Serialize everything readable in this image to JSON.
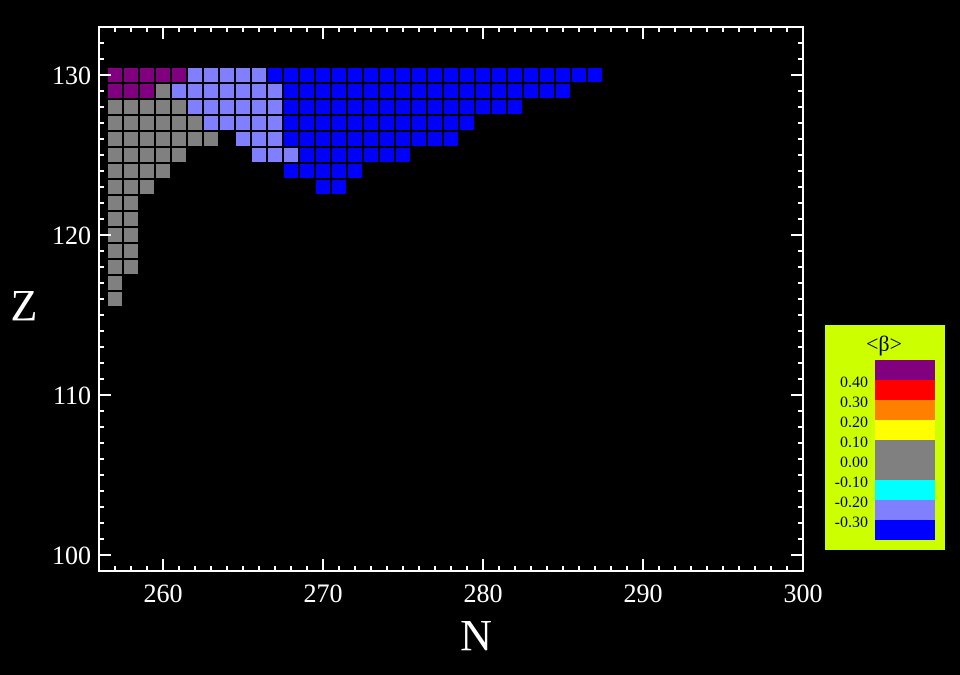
{
  "chart_data": {
    "type": "heatmap",
    "xlabel": "N",
    "ylabel": "Z",
    "xlim": [
      256,
      300
    ],
    "ylim": [
      99,
      133
    ],
    "x_ticks": [
      260,
      270,
      280,
      290,
      300
    ],
    "y_ticks": [
      100,
      110,
      120,
      130
    ],
    "grid": false,
    "legend": {
      "title": "<β>",
      "placement": "right",
      "bins": [
        {
          "color": "#800080",
          "label": ""
        },
        {
          "color": "#ff0000",
          "label": "0.40"
        },
        {
          "color": "#ff8000",
          "label": "0.30"
        },
        {
          "color": "#ffff00",
          "label": "0.20"
        },
        {
          "color": "#808080",
          "label": "0.10"
        },
        {
          "color": "#808080",
          "label": "0.00"
        },
        {
          "color": "#00ffff",
          "label": "-0.10"
        },
        {
          "color": "#8080ff",
          "label": "-0.20"
        },
        {
          "color": "#0000ff",
          "label": "-0.30"
        }
      ],
      "background": "#ccff00"
    },
    "runs": [
      {
        "z": 130,
        "n_from": 257,
        "n_to": 261,
        "color": "#800080"
      },
      {
        "z": 130,
        "n_from": 262,
        "n_to": 266,
        "color": "#8080ff"
      },
      {
        "z": 130,
        "n_from": 267,
        "n_to": 287,
        "color": "#0000ff"
      },
      {
        "z": 129,
        "n_from": 257,
        "n_to": 259,
        "color": "#800080"
      },
      {
        "z": 129,
        "n_from": 260,
        "n_to": 260,
        "color": "#808080"
      },
      {
        "z": 129,
        "n_from": 261,
        "n_to": 267,
        "color": "#8080ff"
      },
      {
        "z": 129,
        "n_from": 268,
        "n_to": 285,
        "color": "#0000ff"
      },
      {
        "z": 128,
        "n_from": 257,
        "n_to": 261,
        "color": "#808080"
      },
      {
        "z": 128,
        "n_from": 262,
        "n_to": 267,
        "color": "#8080ff"
      },
      {
        "z": 128,
        "n_from": 268,
        "n_to": 282,
        "color": "#0000ff"
      },
      {
        "z": 127,
        "n_from": 257,
        "n_to": 262,
        "color": "#808080"
      },
      {
        "z": 127,
        "n_from": 263,
        "n_to": 267,
        "color": "#8080ff"
      },
      {
        "z": 127,
        "n_from": 268,
        "n_to": 279,
        "color": "#0000ff"
      },
      {
        "z": 126,
        "n_from": 257,
        "n_to": 263,
        "color": "#808080"
      },
      {
        "z": 126,
        "n_from": 265,
        "n_to": 267,
        "color": "#8080ff"
      },
      {
        "z": 126,
        "n_from": 268,
        "n_to": 278,
        "color": "#0000ff"
      },
      {
        "z": 125,
        "n_from": 257,
        "n_to": 261,
        "color": "#808080"
      },
      {
        "z": 125,
        "n_from": 266,
        "n_to": 268,
        "color": "#8080ff"
      },
      {
        "z": 125,
        "n_from": 269,
        "n_to": 275,
        "color": "#0000ff"
      },
      {
        "z": 124,
        "n_from": 257,
        "n_to": 260,
        "color": "#808080"
      },
      {
        "z": 124,
        "n_from": 268,
        "n_to": 272,
        "color": "#0000ff"
      },
      {
        "z": 123,
        "n_from": 257,
        "n_to": 259,
        "color": "#808080"
      },
      {
        "z": 123,
        "n_from": 270,
        "n_to": 271,
        "color": "#0000ff"
      },
      {
        "z": 122,
        "n_from": 257,
        "n_to": 258,
        "color": "#808080"
      },
      {
        "z": 121,
        "n_from": 257,
        "n_to": 258,
        "color": "#808080"
      },
      {
        "z": 120,
        "n_from": 257,
        "n_to": 258,
        "color": "#808080"
      },
      {
        "z": 119,
        "n_from": 257,
        "n_to": 258,
        "color": "#808080"
      },
      {
        "z": 118,
        "n_from": 257,
        "n_to": 258,
        "color": "#808080"
      },
      {
        "z": 117,
        "n_from": 257,
        "n_to": 257,
        "color": "#808080"
      },
      {
        "z": 116,
        "n_from": 257,
        "n_to": 257,
        "color": "#808080"
      }
    ]
  }
}
